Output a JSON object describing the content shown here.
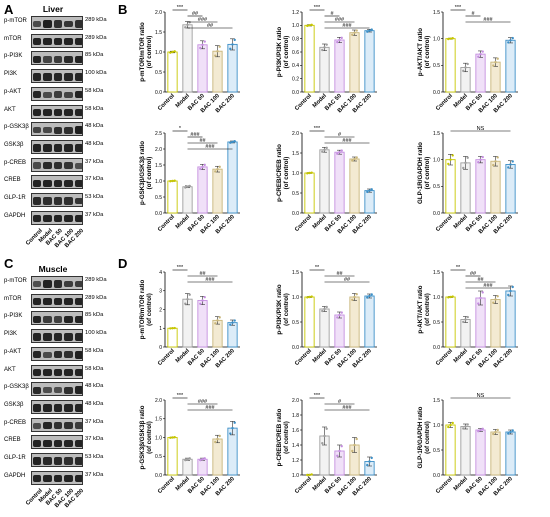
{
  "panels": {
    "A": "A",
    "B": "B",
    "C": "C",
    "D": "D"
  },
  "blots": [
    {
      "title": "Liver",
      "rows": [
        {
          "protein": "p-mTOR",
          "kda": "289 kDa",
          "bands": [
            0.55,
            0.95,
            0.8,
            0.75,
            0.8
          ]
        },
        {
          "protein": "mTOR",
          "kda": "289 kDa",
          "bands": [
            0.9,
            0.9,
            0.9,
            0.9,
            0.9
          ]
        },
        {
          "protein": "p-PI3K",
          "kda": "85 kDa",
          "bands": [
            0.9,
            0.6,
            0.7,
            0.85,
            0.9
          ]
        },
        {
          "protein": "PI3K",
          "kda": "100 kDa",
          "bands": [
            0.9,
            0.9,
            0.9,
            0.9,
            0.9
          ]
        },
        {
          "protein": "p-AKT",
          "kda": "58 kDa",
          "bands": [
            0.9,
            0.55,
            0.7,
            0.6,
            0.9
          ]
        },
        {
          "protein": "AKT",
          "kda": "58 kDa",
          "bands": [
            0.9,
            0.9,
            0.9,
            0.9,
            0.9
          ]
        },
        {
          "protein": "p-GSK3β",
          "kda": "48 kDa",
          "bands": [
            0.6,
            0.55,
            0.8,
            0.8,
            0.95
          ]
        },
        {
          "protein": "GSK3β",
          "kda": "48 kDa",
          "bands": [
            0.9,
            0.9,
            0.9,
            0.9,
            0.9
          ]
        },
        {
          "protein": "p-CREB",
          "kda": "37 kDa",
          "bands": [
            0.55,
            0.85,
            0.8,
            0.75,
            0.5
          ]
        },
        {
          "protein": "CREB",
          "kda": "37 kDa",
          "bands": [
            0.9,
            0.9,
            0.9,
            0.9,
            0.9
          ]
        },
        {
          "protein": "GLP-1R",
          "kda": "53 kDa",
          "bands": [
            0.85,
            0.8,
            0.8,
            0.8,
            0.75
          ]
        },
        {
          "protein": "GAPDH",
          "kda": "37 kDa",
          "bands": [
            0.9,
            0.9,
            0.9,
            0.9,
            0.9
          ]
        }
      ],
      "lanes": [
        "Control",
        "Model",
        "BAC 50",
        "BAC 100",
        "BAC 200"
      ]
    },
    {
      "title": "Muscle",
      "rows": [
        {
          "protein": "p-mTOR",
          "kda": "289 kDa",
          "bands": [
            0.5,
            0.9,
            0.85,
            0.7,
            0.7
          ]
        },
        {
          "protein": "mTOR",
          "kda": "289 kDa",
          "bands": [
            0.9,
            0.9,
            0.9,
            0.9,
            0.9
          ]
        },
        {
          "protein": "p-PI3K",
          "kda": "85 kDa",
          "bands": [
            0.9,
            0.7,
            0.65,
            0.9,
            0.9
          ]
        },
        {
          "protein": "PI3K",
          "kda": "100 kDa",
          "bands": [
            0.9,
            0.9,
            0.9,
            0.9,
            0.9
          ]
        },
        {
          "protein": "p-AKT",
          "kda": "58 kDa",
          "bands": [
            0.9,
            0.55,
            0.85,
            0.8,
            0.95
          ]
        },
        {
          "protein": "AKT",
          "kda": "58 kDa",
          "bands": [
            0.9,
            0.9,
            0.9,
            0.9,
            0.9
          ]
        },
        {
          "protein": "p-GSK3β",
          "kda": "48 kDa",
          "bands": [
            0.85,
            0.5,
            0.5,
            0.8,
            0.9
          ]
        },
        {
          "protein": "GSK3β",
          "kda": "48 kDa",
          "bands": [
            0.9,
            0.9,
            0.9,
            0.9,
            0.9
          ]
        },
        {
          "protein": "p-CREB",
          "kda": "37 kDa",
          "bands": [
            0.5,
            0.9,
            0.8,
            0.8,
            0.7
          ]
        },
        {
          "protein": "CREB",
          "kda": "37 kDa",
          "bands": [
            0.9,
            0.9,
            0.9,
            0.9,
            0.9
          ]
        },
        {
          "protein": "GLP-1R",
          "kda": "53 kDa",
          "bands": [
            0.9,
            0.85,
            0.85,
            0.8,
            0.85
          ]
        },
        {
          "protein": "GAPDH",
          "kda": "37 kDa",
          "bands": [
            0.9,
            0.9,
            0.9,
            0.9,
            0.9
          ]
        }
      ],
      "lanes": [
        "Control",
        "Model",
        "BAC 50",
        "BAC 100",
        "BAC 200"
      ]
    }
  ],
  "colors": {
    "groups": [
      "#c8c800",
      "#9e9e9e",
      "#c58ee0",
      "#c9b67a",
      "#3c8fc7"
    ],
    "fills": [
      "#ffffff",
      "#f2f2f2",
      "#f0e0f8",
      "#f3ead2",
      "#dcecf8"
    ],
    "axis": "#000000"
  },
  "chart_data": [
    {
      "type": "bar",
      "ylabel": "p-mTOR/mTOR ratio",
      "ylabel2": "(of control)",
      "categories": [
        "Control",
        "Model",
        "BAC 50",
        "BAC 100",
        "BAC 200"
      ],
      "values": [
        1.0,
        1.68,
        1.18,
        1.02,
        1.19
      ],
      "errors": [
        0.02,
        0.08,
        0.1,
        0.14,
        0.14
      ],
      "ylim": [
        0,
        2.0
      ],
      "ticks": [
        "0.0",
        "0.5",
        "1.0",
        "1.5",
        "2.0"
      ],
      "sig": [
        {
          "from": 0,
          "to": 1,
          "label": "***"
        },
        {
          "from": 1,
          "to": 2,
          "label": "##"
        },
        {
          "from": 1,
          "to": 3,
          "label": "###"
        },
        {
          "from": 1,
          "to": 4,
          "label": "##"
        }
      ]
    },
    {
      "type": "bar",
      "ylabel": "p-PI3K/PI3K ratio",
      "ylabel2": "(of control)",
      "categories": [
        "Control",
        "Model",
        "BAC 50",
        "BAC 100",
        "BAC 200"
      ],
      "values": [
        1.0,
        0.67,
        0.78,
        0.89,
        0.92
      ],
      "errors": [
        0.01,
        0.05,
        0.04,
        0.04,
        0.02
      ],
      "ylim": [
        0,
        1.2
      ],
      "ticks": [
        "0.0",
        "0.2",
        "0.4",
        "0.6",
        "0.8",
        "1.0",
        "1.2"
      ],
      "sig": [
        {
          "from": 0,
          "to": 1,
          "label": "***"
        },
        {
          "from": 1,
          "to": 2,
          "label": "#"
        },
        {
          "from": 1,
          "to": 3,
          "label": "###"
        },
        {
          "from": 1,
          "to": 4,
          "label": "###"
        }
      ]
    },
    {
      "type": "bar",
      "ylabel": "p-AKT/AKT ratio",
      "ylabel2": "(of control)",
      "categories": [
        "Control",
        "Model",
        "BAC 50",
        "BAC 100",
        "BAC 200"
      ],
      "values": [
        1.0,
        0.46,
        0.71,
        0.56,
        0.97
      ],
      "errors": [
        0.01,
        0.08,
        0.06,
        0.08,
        0.05
      ],
      "ylim": [
        0,
        1.5
      ],
      "ticks": [
        "0.0",
        "0.5",
        "1.0",
        "1.5"
      ],
      "sig": [
        {
          "from": 0,
          "to": 1,
          "label": "***"
        },
        {
          "from": 1,
          "to": 2,
          "label": "#"
        },
        {
          "from": 1,
          "to": 4,
          "label": "###"
        }
      ]
    },
    {
      "type": "bar",
      "ylabel": "p-GSK3β/GSK3β ratio",
      "ylabel2": "(of control)",
      "categories": [
        "Control",
        "Model",
        "BAC 50",
        "BAC 100",
        "BAC 200"
      ],
      "values": [
        1.0,
        0.82,
        1.44,
        1.37,
        2.22
      ],
      "errors": [
        0.01,
        0.03,
        0.08,
        0.09,
        0.03
      ],
      "ylim": [
        0,
        2.5
      ],
      "ticks": [
        "0.0",
        "0.5",
        "1.0",
        "1.5",
        "2.0",
        "2.5"
      ],
      "sig": [
        {
          "from": 0,
          "to": 1,
          "label": "*"
        },
        {
          "from": 1,
          "to": 2,
          "label": "###"
        },
        {
          "from": 1,
          "to": 3,
          "label": "##"
        },
        {
          "from": 1,
          "to": 4,
          "label": "###"
        }
      ]
    },
    {
      "type": "bar",
      "ylabel": "p-CREB/CREB ratio",
      "ylabel2": "(of control)",
      "categories": [
        "Control",
        "Model",
        "BAC 50",
        "BAC 100",
        "BAC 200"
      ],
      "values": [
        1.0,
        1.58,
        1.52,
        1.35,
        0.56
      ],
      "errors": [
        0.01,
        0.06,
        0.05,
        0.05,
        0.04
      ],
      "ylim": [
        0,
        2.0
      ],
      "ticks": [
        "0.0",
        "0.5",
        "1.0",
        "1.5",
        "2.0"
      ],
      "sig": [
        {
          "from": 0,
          "to": 1,
          "label": "***"
        },
        {
          "from": 1,
          "to": 3,
          "label": "#"
        },
        {
          "from": 1,
          "to": 4,
          "label": "###"
        }
      ]
    },
    {
      "type": "bar",
      "ylabel": "GLP-1R/GAPDH ratio",
      "ylabel2": "(of control)",
      "categories": [
        "Control",
        "Model",
        "BAC 50",
        "BAC 100",
        "BAC 200"
      ],
      "values": [
        1.0,
        0.94,
        1.0,
        0.97,
        0.91
      ],
      "errors": [
        0.1,
        0.12,
        0.06,
        0.09,
        0.07
      ],
      "ylim": [
        0,
        1.5
      ],
      "ticks": [
        "0.0",
        "0.5",
        "1.0",
        "1.5"
      ],
      "sig": [
        {
          "from": 0,
          "to": 4,
          "label": "NS"
        }
      ]
    },
    {
      "type": "bar",
      "ylabel": "p-mTOR/mTOR ratio",
      "ylabel2": "(of control)",
      "categories": [
        "Control",
        "Model",
        "BAC 50",
        "BAC 100",
        "BAC 200"
      ],
      "values": [
        1.0,
        2.55,
        2.48,
        1.42,
        1.3
      ],
      "errors": [
        0.01,
        0.3,
        0.22,
        0.2,
        0.14
      ],
      "ylim": [
        0,
        4
      ],
      "ticks": [
        "0",
        "1",
        "2",
        "3",
        "4"
      ],
      "sig": [
        {
          "from": 0,
          "to": 1,
          "label": "***"
        },
        {
          "from": 1,
          "to": 3,
          "label": "##"
        },
        {
          "from": 1,
          "to": 4,
          "label": "###"
        }
      ]
    },
    {
      "type": "bar",
      "ylabel": "p-PI3K/PI3K ratio",
      "ylabel2": "(of control)",
      "categories": [
        "Control",
        "Model",
        "BAC 50",
        "BAC 100",
        "BAC 200"
      ],
      "values": [
        1.0,
        0.76,
        0.64,
        1.0,
        1.02
      ],
      "errors": [
        0.01,
        0.05,
        0.06,
        0.07,
        0.04
      ],
      "ylim": [
        0,
        1.5
      ],
      "ticks": [
        "0.0",
        "0.5",
        "1.0",
        "1.5"
      ],
      "sig": [
        {
          "from": 0,
          "to": 1,
          "label": "**"
        },
        {
          "from": 1,
          "to": 3,
          "label": "##"
        },
        {
          "from": 1,
          "to": 4,
          "label": "##"
        }
      ]
    },
    {
      "type": "bar",
      "ylabel": "p-AKT/AKT ratio",
      "ylabel2": "(of control)",
      "categories": [
        "Control",
        "Model",
        "BAC 50",
        "BAC 100",
        "BAC 200"
      ],
      "values": [
        1.0,
        0.55,
        0.98,
        0.95,
        1.12
      ],
      "errors": [
        0.01,
        0.06,
        0.14,
        0.08,
        0.1
      ],
      "ylim": [
        0,
        1.5
      ],
      "ticks": [
        "0.0",
        "0.5",
        "1.0",
        "1.5"
      ],
      "sig": [
        {
          "from": 0,
          "to": 1,
          "label": "**"
        },
        {
          "from": 1,
          "to": 2,
          "label": "##"
        },
        {
          "from": 1,
          "to": 3,
          "label": "##"
        },
        {
          "from": 1,
          "to": 4,
          "label": "###"
        }
      ]
    },
    {
      "type": "bar",
      "ylabel": "p-GSK3β/GSK3β ratio",
      "ylabel2": "(of control)",
      "categories": [
        "Control",
        "Model",
        "BAC 50",
        "BAC 100",
        "BAC 200"
      ],
      "values": [
        1.0,
        0.42,
        0.42,
        0.96,
        1.25
      ],
      "errors": [
        0.01,
        0.03,
        0.03,
        0.1,
        0.18
      ],
      "ylim": [
        0,
        2.0
      ],
      "ticks": [
        "0.0",
        "0.5",
        "1.0",
        "1.5",
        "2.0"
      ],
      "sig": [
        {
          "from": 0,
          "to": 1,
          "label": "***"
        },
        {
          "from": 1,
          "to": 3,
          "label": "###"
        },
        {
          "from": 1,
          "to": 4,
          "label": "###"
        }
      ]
    },
    {
      "type": "bar",
      "ylabel": "p-CREB/CREB ratio",
      "ylabel2": "(of control)",
      "categories": [
        "Control",
        "Model",
        "BAC 50",
        "BAC 100",
        "BAC 200"
      ],
      "values": [
        1.0,
        1.52,
        1.32,
        1.4,
        1.18
      ],
      "errors": [
        0.01,
        0.12,
        0.08,
        0.1,
        0.06
      ],
      "ylim": [
        0,
        2.0
      ],
      "ticks": [
        "1.0",
        "1.2",
        "1.4",
        "1.6",
        "1.8",
        "2.0"
      ],
      "ymin_display": 1.0,
      "sig": [
        {
          "from": 0,
          "to": 1,
          "label": "***"
        },
        {
          "from": 1,
          "to": 3,
          "label": "#"
        },
        {
          "from": 1,
          "to": 4,
          "label": "###"
        }
      ]
    },
    {
      "type": "bar",
      "ylabel": "GLP-1R/GAPDH ratio",
      "ylabel2": "(of control)",
      "categories": [
        "Control",
        "Model",
        "BAC 50",
        "BAC 100",
        "BAC 200"
      ],
      "values": [
        1.0,
        0.97,
        0.9,
        0.86,
        0.86
      ],
      "errors": [
        0.05,
        0.05,
        0.03,
        0.05,
        0.04
      ],
      "ylim": [
        0,
        1.5
      ],
      "ticks": [
        "0.0",
        "0.5",
        "1.0",
        "1.5"
      ],
      "sig": [
        {
          "from": 0,
          "to": 4,
          "label": "NS"
        }
      ]
    }
  ]
}
